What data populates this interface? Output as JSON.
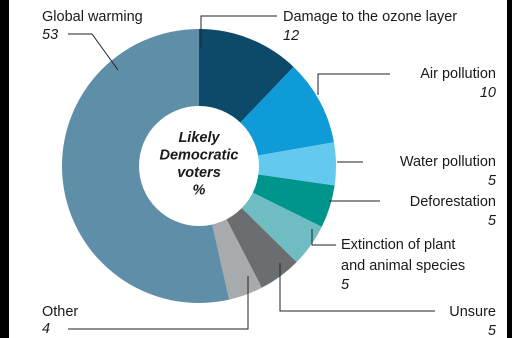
{
  "chart_data": {
    "type": "donut",
    "center_label": [
      "Likely",
      "Democratic",
      "voters",
      "%"
    ],
    "unit": "%",
    "slices": [
      {
        "label": [
          "Damage to the ozone layer"
        ],
        "value": 12,
        "color": "#0d4a69"
      },
      {
        "label": [
          "Air pollution"
        ],
        "value": 10,
        "color": "#0f9bd7"
      },
      {
        "label": [
          "Water pollution"
        ],
        "value": 5,
        "color": "#63c9ee"
      },
      {
        "label": [
          "Deforestation"
        ],
        "value": 5,
        "color": "#00958a"
      },
      {
        "label": [
          "Extinction of plant",
          "and animal species"
        ],
        "value": 5,
        "color": "#6fbdc3"
      },
      {
        "label": [
          "Unsure"
        ],
        "value": 5,
        "color": "#6b6e70"
      },
      {
        "label": [
          "Other"
        ],
        "value": 4,
        "color": "#a8abad"
      },
      {
        "label": [
          "Global warming"
        ],
        "value": 53,
        "color": "#5f8ea8"
      }
    ]
  }
}
